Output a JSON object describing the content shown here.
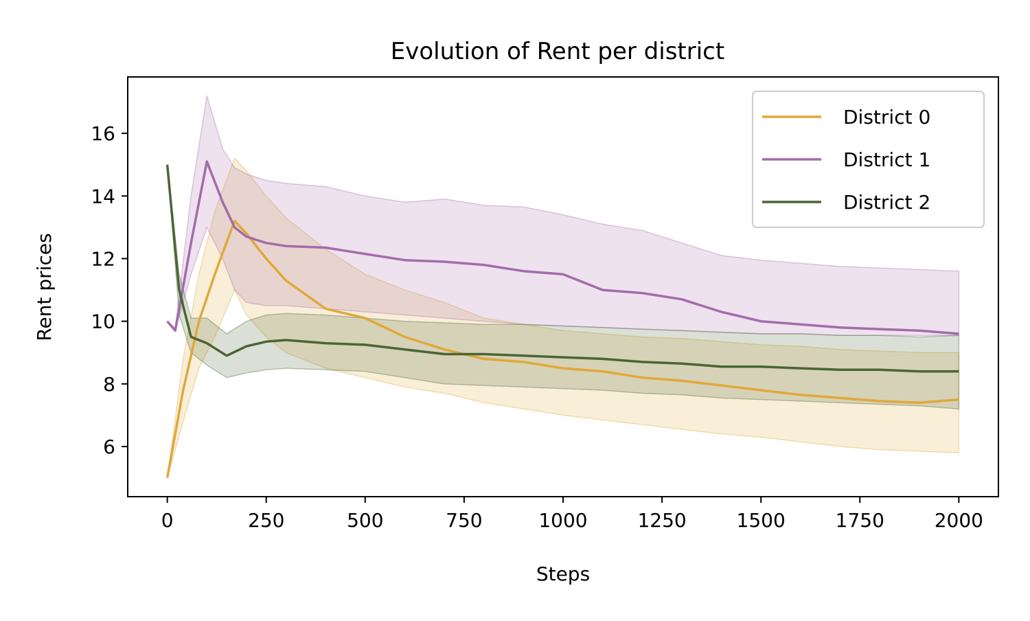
{
  "chart_data": {
    "type": "line",
    "title": "Evolution of Rent per district",
    "xlabel": "Steps",
    "ylabel": "Rent prices",
    "xlim": [
      -100,
      2100
    ],
    "ylim": [
      4.4,
      17.8
    ],
    "xticks": [
      0,
      250,
      500,
      750,
      1000,
      1250,
      1500,
      1750,
      2000
    ],
    "yticks": [
      6,
      8,
      10,
      12,
      14,
      16
    ],
    "grid": false,
    "legend_position": "top-right",
    "series": [
      {
        "name": "District 0",
        "color": "#e0a83a",
        "band_opacity": 0.2,
        "x": [
          0,
          40,
          80,
          120,
          170,
          200,
          250,
          300,
          400,
          500,
          600,
          700,
          800,
          900,
          1000,
          1100,
          1200,
          1300,
          1400,
          1500,
          1600,
          1700,
          1800,
          1900,
          2000
        ],
        "y": [
          5.0,
          7.8,
          10.0,
          11.5,
          13.2,
          12.8,
          12.0,
          11.3,
          10.4,
          10.1,
          9.5,
          9.1,
          8.8,
          8.7,
          8.5,
          8.4,
          8.2,
          8.1,
          7.95,
          7.8,
          7.65,
          7.55,
          7.45,
          7.4,
          7.5
        ],
        "lower": [
          5.0,
          6.8,
          8.5,
          9.5,
          11.0,
          10.2,
          9.5,
          9.0,
          8.5,
          8.2,
          7.9,
          7.7,
          7.4,
          7.2,
          7.0,
          6.85,
          6.7,
          6.55,
          6.4,
          6.3,
          6.15,
          6.0,
          5.9,
          5.85,
          5.8
        ],
        "upper": [
          5.0,
          8.8,
          11.5,
          13.5,
          15.2,
          14.8,
          14.0,
          13.3,
          12.3,
          11.5,
          11.0,
          10.6,
          10.1,
          9.9,
          9.7,
          9.6,
          9.5,
          9.45,
          9.35,
          9.25,
          9.2,
          9.1,
          9.05,
          9.0,
          9.0
        ]
      },
      {
        "name": "District 1",
        "color": "#a36caa",
        "band_opacity": 0.2,
        "x": [
          0,
          20,
          60,
          100,
          140,
          170,
          200,
          250,
          300,
          400,
          500,
          600,
          700,
          800,
          900,
          1000,
          1100,
          1200,
          1300,
          1400,
          1500,
          1600,
          1700,
          1800,
          1900,
          2000
        ],
        "y": [
          10.0,
          9.7,
          12.5,
          15.1,
          13.8,
          13.0,
          12.7,
          12.5,
          12.4,
          12.35,
          12.15,
          11.95,
          11.9,
          11.8,
          11.6,
          11.5,
          11.0,
          10.9,
          10.7,
          10.3,
          10.0,
          9.9,
          9.8,
          9.75,
          9.7,
          9.6
        ],
        "lower": [
          10.0,
          9.7,
          11.5,
          13.0,
          12.0,
          11.0,
          10.6,
          10.5,
          10.5,
          10.4,
          10.3,
          10.2,
          10.1,
          10.0,
          9.9,
          9.85,
          9.8,
          9.75,
          9.7,
          9.65,
          9.6,
          9.6,
          9.55,
          9.55,
          9.55,
          9.55
        ],
        "upper": [
          10.0,
          9.8,
          14.0,
          17.2,
          15.5,
          14.9,
          14.7,
          14.5,
          14.4,
          14.3,
          14.0,
          13.8,
          13.9,
          13.7,
          13.65,
          13.4,
          13.1,
          12.9,
          12.5,
          12.1,
          11.95,
          11.85,
          11.75,
          11.7,
          11.65,
          11.6
        ]
      },
      {
        "name": "District 2",
        "color": "#4a6535",
        "band_opacity": 0.2,
        "x": [
          0,
          30,
          60,
          100,
          150,
          200,
          250,
          300,
          400,
          500,
          600,
          700,
          800,
          900,
          1000,
          1100,
          1200,
          1300,
          1400,
          1500,
          1600,
          1700,
          1800,
          1900,
          2000
        ],
        "y": [
          15.0,
          11.0,
          9.5,
          9.3,
          8.9,
          9.2,
          9.35,
          9.4,
          9.3,
          9.25,
          9.1,
          8.95,
          8.95,
          8.9,
          8.85,
          8.8,
          8.7,
          8.65,
          8.55,
          8.55,
          8.5,
          8.45,
          8.45,
          8.4,
          8.4
        ],
        "lower": [
          15.0,
          10.2,
          9.0,
          8.6,
          8.2,
          8.35,
          8.45,
          8.5,
          8.45,
          8.4,
          8.2,
          8.0,
          7.95,
          7.9,
          7.85,
          7.8,
          7.7,
          7.65,
          7.55,
          7.5,
          7.45,
          7.4,
          7.35,
          7.3,
          7.2
        ],
        "upper": [
          15.0,
          11.5,
          10.1,
          10.1,
          9.6,
          10.0,
          10.2,
          10.25,
          10.2,
          10.1,
          10.0,
          9.95,
          9.9,
          9.9,
          9.85,
          9.8,
          9.75,
          9.7,
          9.65,
          9.6,
          9.6,
          9.55,
          9.55,
          9.5,
          9.55
        ]
      }
    ]
  }
}
